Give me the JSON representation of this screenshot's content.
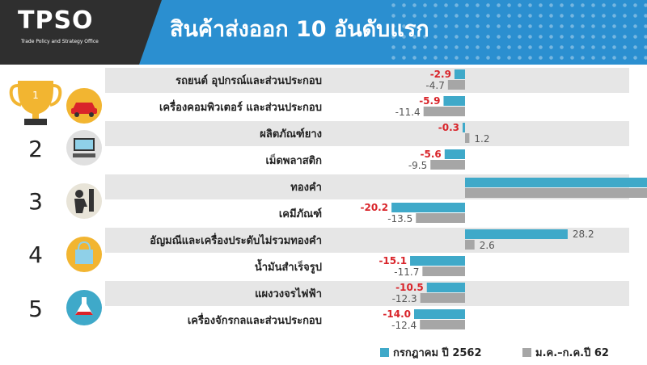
{
  "header": {
    "logo": "TPSO",
    "logo_subtitle": "Trade Policy and Strategy Office",
    "title": "สินค้าส่งออก 10 อันดับแรก"
  },
  "ranks": [
    "2",
    "3",
    "4",
    "5"
  ],
  "colors": {
    "series_a": "#3fa9c9",
    "series_b": "#a6a6a6",
    "negative_label": "#d9242a",
    "band": "#e6e6e6"
  },
  "chart_data": {
    "type": "bar",
    "orientation": "horizontal",
    "categories": [
      "รถยนต์ อุปกรณ์และส่วนประกอบ",
      "เครื่องคอมพิวเตอร์ และส่วนประกอบ",
      "ผลิตภัณฑ์ยาง",
      "เม็ดพลาสติก",
      "ทองคำ",
      "เคมีภัณฑ์",
      "อัญมณีและเครื่องประดับไม่รวมทองคำ",
      "น้ำมันสำเร็จรูป",
      "แผงวงจรไฟฟ้า",
      "เครื่องจักรกลและส่วนประกอบ"
    ],
    "series": [
      {
        "name": "กรกฎาคม ปี 2562",
        "values": [
          -2.9,
          -5.9,
          -0.3,
          -5.6,
          null,
          -20.2,
          28.2,
          -15.1,
          -10.5,
          -14.0
        ],
        "labels": [
          "-2.9",
          "-5.9",
          "-0.3",
          "-5.6",
          "",
          "-20.2",
          "28.2",
          "-15.1",
          "-10.5",
          "-14.0"
        ]
      },
      {
        "name": "ม.ค.–ก.ค.ปี 62",
        "values": [
          -4.7,
          -11.4,
          1.2,
          -9.5,
          null,
          -13.5,
          2.6,
          -11.7,
          -12.3,
          -12.4
        ],
        "labels": [
          "-4.7",
          "-11.4",
          "1.2",
          "-9.5",
          "",
          "-13.5",
          "2.6",
          "-11.7",
          "-12.3",
          "-12.4"
        ]
      }
    ]
  }
}
